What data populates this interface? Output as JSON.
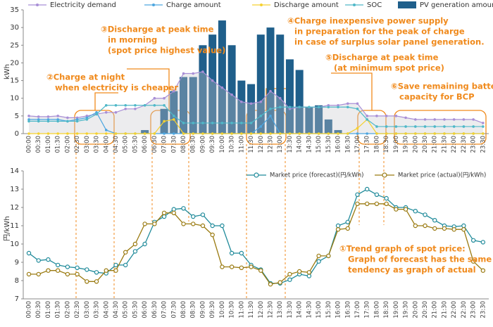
{
  "chart_data": [
    {
      "type": "combo",
      "y_label": "kWh",
      "categories": [
        "00:00",
        "00:30",
        "01:00",
        "01:30",
        "02:00",
        "02:30",
        "03:00",
        "03:30",
        "04:00",
        "04:30",
        "05:00",
        "05:30",
        "06:00",
        "06:30",
        "07:00",
        "07:30",
        "08:00",
        "08:30",
        "09:00",
        "09:30",
        "10:00",
        "10:30",
        "11:00",
        "11:30",
        "12:00",
        "12:30",
        "13:00",
        "13:30",
        "14:00",
        "14:30",
        "15:00",
        "15:30",
        "16:00",
        "16:30",
        "17:00",
        "17:30",
        "18:00",
        "18:30",
        "19:00",
        "19:30",
        "20:00",
        "20:30",
        "21:00",
        "21:30",
        "22:00",
        "22:30",
        "23:00",
        "23:30"
      ],
      "ylim": [
        0,
        35
      ],
      "yticks": [
        0,
        5,
        10,
        15,
        20,
        25,
        30,
        35
      ],
      "grid": false,
      "series": [
        {
          "name": "Electricity demand",
          "kind": "area-line",
          "color": "#a98fd6",
          "values": [
            5,
            4.8,
            4.8,
            5,
            4.5,
            4.5,
            5,
            5.5,
            6,
            6,
            7,
            7,
            8,
            10,
            10,
            12,
            17,
            17,
            17.5,
            15,
            13,
            11,
            9,
            8.5,
            9,
            12,
            10,
            7,
            7.5,
            7.5,
            7.5,
            8,
            8,
            8.5,
            8.5,
            5,
            5,
            5,
            5,
            4.5,
            4,
            4,
            4,
            4,
            4,
            4,
            4,
            3
          ]
        },
        {
          "name": "Charge amount",
          "kind": "line",
          "color": "#4da6e0",
          "values": [
            4,
            4,
            4,
            4,
            3.5,
            4,
            4.5,
            6,
            1,
            0,
            0,
            0,
            0,
            0,
            0,
            0,
            0,
            0,
            0,
            0,
            0,
            0,
            0,
            0,
            2,
            5,
            0,
            0,
            0,
            0,
            0,
            0,
            0,
            0,
            0,
            0,
            0,
            0,
            0,
            0,
            0,
            0,
            0,
            0,
            0,
            0,
            0,
            0
          ]
        },
        {
          "name": "Discharge amount",
          "kind": "line",
          "color": "#f5d130",
          "values": [
            0,
            0,
            0,
            0,
            0,
            0,
            0,
            0,
            0,
            0,
            0,
            0,
            0,
            0,
            3.5,
            4,
            0,
            0,
            0,
            0,
            0,
            0,
            0,
            0,
            0,
            0,
            0,
            0,
            0,
            0,
            0,
            0,
            0,
            0,
            1.5,
            4,
            0,
            0,
            0,
            0,
            0,
            0,
            0,
            0,
            0,
            0,
            0,
            0
          ]
        },
        {
          "name": "SOC",
          "kind": "line",
          "color": "#4fb8c8",
          "values": [
            3.5,
            3.5,
            3.5,
            3.5,
            3.5,
            3.5,
            4,
            5.5,
            8,
            8,
            8,
            8,
            8,
            8,
            8,
            5,
            3,
            3,
            3,
            3,
            3,
            3,
            3,
            3,
            5,
            7,
            7.5,
            7.5,
            7.5,
            7.5,
            7.5,
            7.5,
            7.5,
            7.5,
            7,
            4,
            2,
            2,
            2,
            2,
            2,
            2,
            2,
            2,
            2,
            2,
            2,
            2
          ]
        },
        {
          "name": "PV generation amount",
          "kind": "bar",
          "color": "#1f5f8b",
          "values": [
            0,
            0,
            0,
            0,
            0,
            0,
            0,
            0,
            0,
            0,
            0,
            0,
            1,
            0,
            7,
            12,
            16,
            16,
            25,
            28,
            32,
            25,
            15,
            14,
            28,
            30,
            28,
            21,
            18,
            7.5,
            8,
            4,
            1,
            0,
            0,
            0,
            0,
            0,
            0,
            0,
            0,
            0,
            0,
            0,
            0,
            0,
            0,
            0
          ]
        }
      ],
      "annotations": [
        {
          "lines": [
            "②Charge at night",
            "when electricity is cheaper"
          ]
        },
        {
          "lines": [
            "③Discharge at peak time",
            "in morning",
            "(spot price highest value)"
          ]
        },
        {
          "lines": [
            "④Charge inexpensive power supply",
            "in preparation for the peak of charge",
            "in case of surplus solar panel generation."
          ]
        },
        {
          "lines": [
            "⑤Discharge at peak time",
            "(at minimum spot price)"
          ]
        },
        {
          "lines": [
            "⑥Save remaining battery",
            "capacity for BCP"
          ]
        }
      ]
    },
    {
      "type": "line",
      "y_label": "円/kWh",
      "categories": [
        "00:00",
        "00:30",
        "01:00",
        "01:30",
        "02:00",
        "02:30",
        "03:00",
        "03:30",
        "04:00",
        "04:30",
        "05:00",
        "05:30",
        "06:00",
        "06:30",
        "07:00",
        "07:30",
        "08:00",
        "08:30",
        "09:00",
        "09:30",
        "10:00",
        "10:30",
        "11:00",
        "11:30",
        "12:00",
        "12:30",
        "13:00",
        "13:30",
        "14:00",
        "14:30",
        "15:00",
        "15:30",
        "16:00",
        "16:30",
        "17:00",
        "17:30",
        "18:00",
        "18:30",
        "19:00",
        "19:30",
        "20:00",
        "20:30",
        "21:00",
        "21:30",
        "22:00",
        "22:30",
        "23:00",
        "23:30"
      ],
      "ylim": [
        7,
        14
      ],
      "yticks": [
        7,
        8,
        9,
        10,
        11,
        12,
        13,
        14
      ],
      "grid": false,
      "series": [
        {
          "name": "Market price (forecast)(円/kWh)",
          "color": "#1f8a9a",
          "values": [
            9.5,
            9.1,
            9.15,
            8.85,
            8.75,
            8.7,
            8.6,
            8.45,
            8.4,
            8.85,
            8.85,
            9.6,
            10.0,
            11.2,
            11.5,
            11.9,
            11.95,
            11.5,
            11.6,
            11.0,
            11.0,
            9.5,
            9.5,
            8.85,
            8.6,
            7.85,
            7.85,
            8.05,
            8.35,
            8.25,
            9.05,
            9.35,
            11.0,
            11.2,
            12.7,
            13.0,
            12.7,
            12.5,
            12.0,
            12.0,
            11.8,
            11.6,
            11.3,
            11.0,
            10.95,
            11.0,
            10.2,
            10.1
          ]
        },
        {
          "name": "Market price (actual)(円/kWh)",
          "color": "#9a7a10",
          "values": [
            8.35,
            8.35,
            8.55,
            8.55,
            8.35,
            8.35,
            7.95,
            7.95,
            8.55,
            8.55,
            9.55,
            10.0,
            11.1,
            11.1,
            11.7,
            11.7,
            11.1,
            11.1,
            11.0,
            10.5,
            8.75,
            8.75,
            8.7,
            8.75,
            8.55,
            7.8,
            7.9,
            8.35,
            8.5,
            8.45,
            9.35,
            9.35,
            10.8,
            10.85,
            12.2,
            12.2,
            12.2,
            12.2,
            11.9,
            11.9,
            11.0,
            11.0,
            10.85,
            10.85,
            10.8,
            10.8,
            9.05,
            8.55
          ]
        }
      ],
      "annotations": [
        {
          "lines": [
            "①Trend graph of spot price:",
            "Graph of forecast has the same",
            "tendency as graph of actual"
          ]
        }
      ]
    }
  ]
}
